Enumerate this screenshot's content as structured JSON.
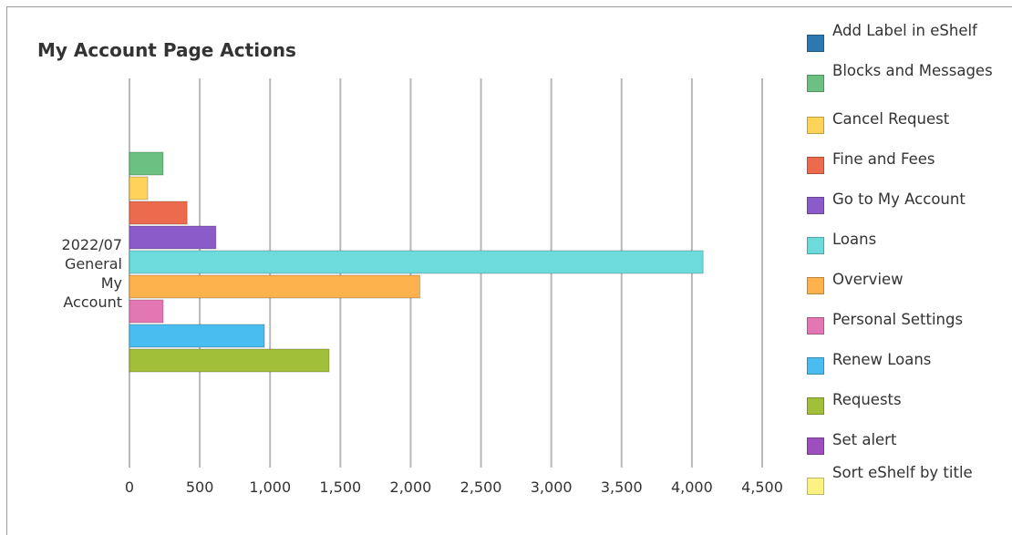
{
  "chart_data": {
    "type": "bar",
    "orientation": "horizontal",
    "title": "My Account Page Actions",
    "category_label_lines": [
      "2022/07",
      "General",
      "My",
      "Account"
    ],
    "categories": [
      "2022/07 General My Account"
    ],
    "xlim": [
      0,
      4500
    ],
    "x_ticks": [
      0,
      500,
      1000,
      1500,
      2000,
      2500,
      3000,
      3500,
      4000,
      4500
    ],
    "x_tick_labels": [
      "0",
      "500",
      "1,000",
      "1,500",
      "2,000",
      "2,500",
      "3,000",
      "3,500",
      "4,000",
      "4,500"
    ],
    "grid": "vertical",
    "legend_position": "right",
    "series": [
      {
        "name": "Add Label in eShelf",
        "color": "#2e78b0",
        "values": [
          0
        ]
      },
      {
        "name": "Blocks and Messages",
        "color": "#6cc081",
        "values": [
          240
        ]
      },
      {
        "name": "Cancel Request",
        "color": "#fdd35a",
        "values": [
          130
        ]
      },
      {
        "name": "Fine and Fees",
        "color": "#ec6a4d",
        "values": [
          410
        ]
      },
      {
        "name": "Go to My Account",
        "color": "#8a5bc9",
        "values": [
          615
        ]
      },
      {
        "name": "Loans",
        "color": "#6ddadc",
        "values": [
          4080
        ]
      },
      {
        "name": "Overview",
        "color": "#fdb24e",
        "values": [
          2065
        ]
      },
      {
        "name": "Personal Settings",
        "color": "#e277b3",
        "values": [
          240
        ]
      },
      {
        "name": "Renew Loans",
        "color": "#49bdf0",
        "values": [
          960
        ]
      },
      {
        "name": "Requests",
        "color": "#a2bf3a",
        "values": [
          1420
        ]
      },
      {
        "name": "Set alert",
        "color": "#9c4fbd",
        "values": [
          0
        ]
      },
      {
        "name": "Sort eShelf by title",
        "color": "#fbf282",
        "values": [
          0
        ]
      }
    ]
  }
}
